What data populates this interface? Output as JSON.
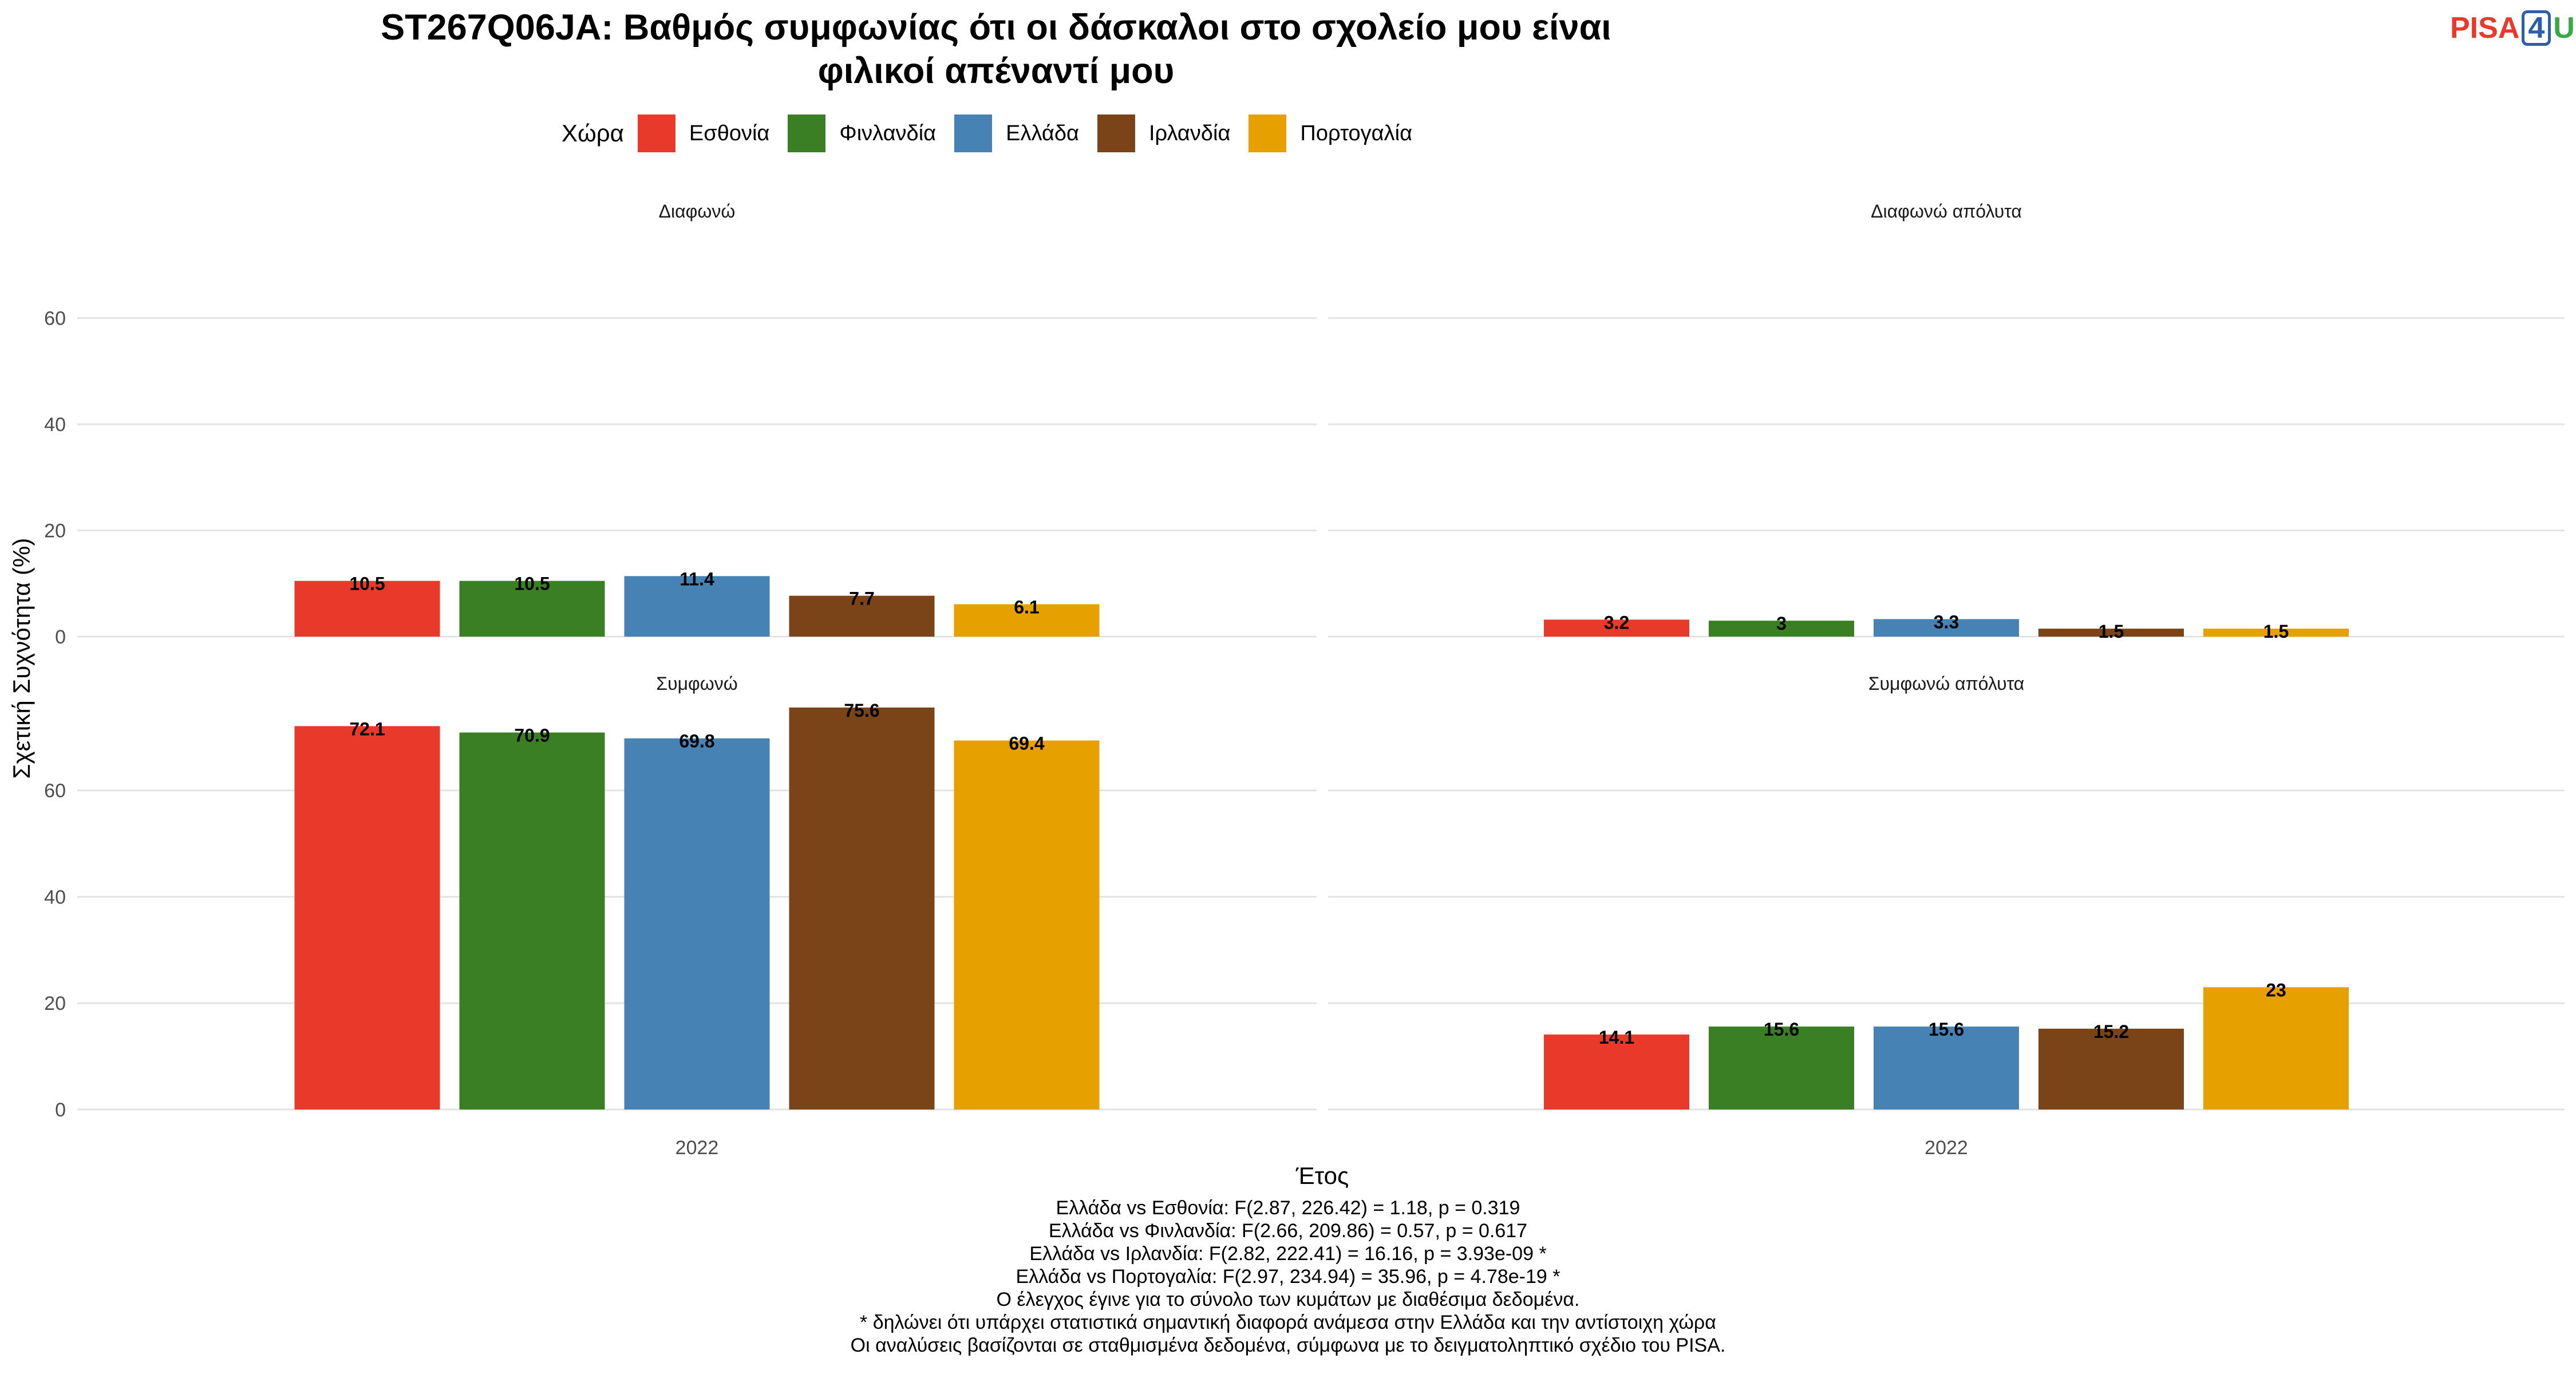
{
  "chart_data": {
    "type": "bar",
    "title_lines": [
      "ST267Q06JA: Βαθμός συμφωνίας ότι οι δάσκαλοι στο σχολείο μου είναι",
      "φιλικοί απέναντί μου"
    ],
    "xlabel": "Έτος",
    "ylabel": "Σχετική Συχνότητα (%)",
    "legend_title": "Χώρα",
    "legend_position": "top",
    "grid": true,
    "categories": [
      "2022"
    ],
    "series_names": [
      "Εσθονία",
      "Φινλανδία",
      "Ελλάδα",
      "Ιρλανδία",
      "Πορτογαλία"
    ],
    "colors": [
      "#e8392a",
      "#3a7f24",
      "#4682b4",
      "#7a4418",
      "#e6a000"
    ],
    "y_ticks": [
      0,
      20,
      40,
      60
    ],
    "ylim": [
      0,
      66
    ],
    "panels": [
      {
        "label": "Διαφωνώ",
        "values": [
          10.5,
          10.5,
          11.4,
          7.7,
          6.1
        ],
        "value_labels": [
          "10.5",
          "10.5",
          "11.4",
          "7.7",
          "6.1"
        ]
      },
      {
        "label": "Διαφωνώ απόλυτα",
        "values": [
          3.2,
          3,
          3.3,
          1.5,
          1.5
        ],
        "value_labels": [
          "3.2",
          "3",
          "3.3",
          "1.5",
          "1.5"
        ]
      },
      {
        "label": "Συμφωνώ",
        "values": [
          72.1,
          70.9,
          69.8,
          75.6,
          69.4
        ],
        "value_labels": [
          "72.1",
          "70.9",
          "69.8",
          "75.6",
          "69.4"
        ]
      },
      {
        "label": "Συμφωνώ απόλυτα",
        "values": [
          14.1,
          15.6,
          15.6,
          15.2,
          23
        ],
        "value_labels": [
          "14.1",
          "15.6",
          "15.6",
          "15.2",
          "23"
        ]
      }
    ]
  },
  "logo": {
    "part1": "PISA",
    "part2": "4",
    "part3": "U"
  },
  "caption": [
    "Ελλάδα vs Εσθονία: F(2.87, 226.42) = 1.18, p = 0.319",
    "Ελλάδα vs Φινλανδία: F(2.66, 209.86) = 0.57, p = 0.617",
    "Ελλάδα vs Ιρλανδία: F(2.82, 222.41) = 16.16, p = 3.93e-09 *",
    "Ελλάδα vs Πορτογαλία: F(2.97, 234.94) = 35.96, p = 4.78e-19 *",
    "Ο έλεγχος έγινε για το σύνολο των κυμάτων με διαθέσιμα δεδομένα.",
    "* δηλώνει ότι υπάρχει στατιστικά σημαντική διαφορά ανάμεσα στην Ελλάδα και την αντίστοιχη χώρα",
    "Οι αναλύσεις βασίζονται σε σταθμισμένα δεδομένα, σύμφωνα με το δειγματοληπτικό σχέδιο του PISA."
  ]
}
